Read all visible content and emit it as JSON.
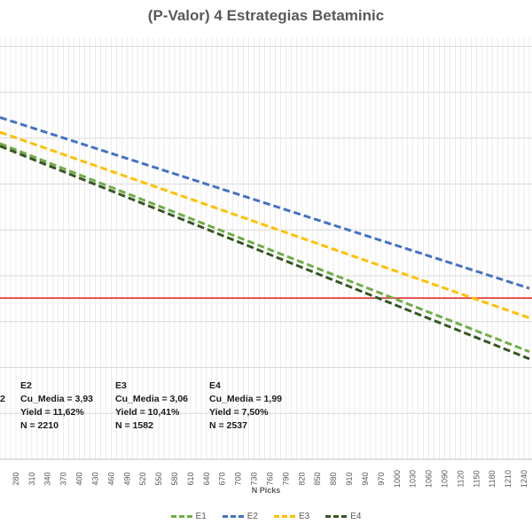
{
  "chart_data": {
    "type": "line",
    "title": "(P-Valor) 4 Estrategias Betaminic",
    "xlabel": "N Picks",
    "ylabel": "",
    "x_tick_labels": [
      "280",
      "310",
      "340",
      "370",
      "400",
      "430",
      "460",
      "490",
      "520",
      "550",
      "580",
      "610",
      "640",
      "670",
      "700",
      "730",
      "760",
      "790",
      "820",
      "850",
      "880",
      "910",
      "940",
      "970",
      "1000",
      "1030",
      "1060",
      "1090",
      "1120",
      "1150",
      "1180",
      "1210",
      "1240"
    ],
    "x": [
      250,
      1250
    ],
    "xlim": [
      250,
      1255
    ],
    "ylim": [
      0,
      1
    ],
    "grid": true,
    "reference_line": {
      "color": "#e02020",
      "value": 0.382
    },
    "series": [
      {
        "name": "E1",
        "color": "#70ad47",
        "values": [
          0.748,
          0.255
        ]
      },
      {
        "name": "E2",
        "color": "#4472c4",
        "values": [
          0.81,
          0.405
        ]
      },
      {
        "name": "E3",
        "color": "#ffc000",
        "values": [
          0.775,
          0.335
        ]
      },
      {
        "name": "E4",
        "color": "#375623",
        "values": [
          0.742,
          0.238
        ]
      }
    ],
    "legend": {
      "position": "bottom"
    },
    "annotations": [
      {
        "id": "E1",
        "lines": [
          "2"
        ]
      },
      {
        "id": "E2",
        "lines": [
          "E2",
          "Cu_Media = 3,93",
          "Yield = 11,62%",
          "N = 2210"
        ]
      },
      {
        "id": "E3",
        "lines": [
          "E3",
          "Cu_Media = 3,06",
          "Yield = 10,41%",
          "N = 1582"
        ]
      },
      {
        "id": "E4",
        "lines": [
          "E4",
          "Cu_Media = 1,99",
          "Yield = 7,50%",
          "N = 2537"
        ]
      }
    ]
  }
}
